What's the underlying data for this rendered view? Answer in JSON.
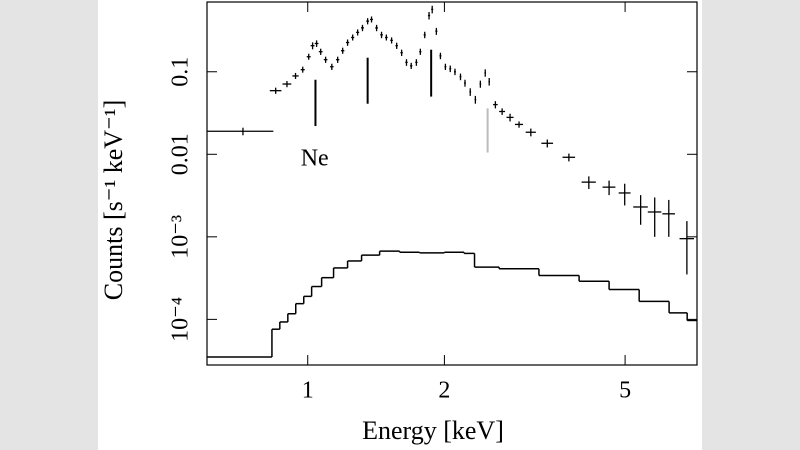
{
  "chart_data": {
    "type": "scatter",
    "xlabel": "Energy [keV]",
    "ylabel": "Counts [s⁻¹ keV⁻¹]",
    "xlog": true,
    "ylog": true,
    "xlim": [
      0.6,
      7.2
    ],
    "ylim": [
      2.8e-05,
      0.7
    ],
    "xticks": [
      1,
      2,
      5
    ],
    "yticks": [
      0.1,
      0.01,
      {
        "value": 0.001,
        "label": "10⁻³"
      },
      {
        "value": 0.0001,
        "label": "10⁻⁴"
      }
    ],
    "points": {
      "color": "#000000",
      "x": [
        0.72,
        0.85,
        0.9,
        0.94,
        0.975,
        1.005,
        1.025,
        1.046,
        1.068,
        1.095,
        1.13,
        1.164,
        1.194,
        1.224,
        1.256,
        1.288,
        1.32,
        1.355,
        1.382,
        1.418,
        1.454,
        1.49,
        1.53,
        1.57,
        1.61,
        1.65,
        1.69,
        1.735,
        1.77,
        1.81,
        1.85,
        1.88,
        1.92,
        1.96,
        2.01,
        2.06,
        2.11,
        2.17,
        2.22,
        2.28,
        2.34,
        2.4,
        2.46,
        2.51,
        2.59,
        2.68,
        2.79,
        2.92,
        3.1,
        3.37,
        3.76,
        4.16,
        4.61,
        4.99,
        5.41,
        5.81,
        6.24,
        6.84
      ],
      "xerr": [
        0.12,
        0.025,
        0.02,
        0.015,
        0.01,
        0.01,
        0.01,
        0.01,
        0.01,
        0.01,
        0.01,
        0.01,
        0.01,
        0.01,
        0.01,
        0.01,
        0.01,
        0.01,
        0.01,
        0.01,
        0.01,
        0.01,
        0.01,
        0.01,
        0.01,
        0.01,
        0.01,
        0.01,
        0.01,
        0.01,
        0.01,
        0.01,
        0.01,
        0.01,
        0.01,
        0.01,
        0.01,
        0.01,
        0.01,
        0.01,
        0.01,
        0.01,
        0.01,
        0.01,
        0.03,
        0.04,
        0.05,
        0.06,
        0.08,
        0.1,
        0.12,
        0.15,
        0.15,
        0.15,
        0.2,
        0.2,
        0.2,
        0.25
      ],
      "y": [
        0.019,
        0.059,
        0.071,
        0.089,
        0.106,
        0.152,
        0.207,
        0.22,
        0.175,
        0.14,
        0.115,
        0.14,
        0.18,
        0.226,
        0.26,
        0.3,
        0.34,
        0.41,
        0.43,
        0.34,
        0.28,
        0.26,
        0.24,
        0.207,
        0.17,
        0.13,
        0.118,
        0.13,
        0.175,
        0.28,
        0.48,
        0.57,
        0.31,
        0.156,
        0.115,
        0.109,
        0.1,
        0.087,
        0.073,
        0.057,
        0.046,
        0.071,
        0.097,
        0.076,
        0.04,
        0.033,
        0.028,
        0.023,
        0.0185,
        0.0136,
        0.0092,
        0.0046,
        0.004,
        0.0034,
        0.0023,
        0.002,
        0.0019,
        0.00095
      ],
      "yerr": [
        0.002,
        0.005,
        0.006,
        0.007,
        0.008,
        0.012,
        0.02,
        0.02,
        0.015,
        0.012,
        0.01,
        0.012,
        0.015,
        0.02,
        0.02,
        0.025,
        0.03,
        0.035,
        0.035,
        0.03,
        0.025,
        0.02,
        0.02,
        0.018,
        0.015,
        0.012,
        0.01,
        0.012,
        0.015,
        0.025,
        0.05,
        0.06,
        0.03,
        0.014,
        0.01,
        0.01,
        0.009,
        0.008,
        0.007,
        0.006,
        0.005,
        0.007,
        0.01,
        0.008,
        0.004,
        0.003,
        0.003,
        0.002,
        0.002,
        0.0015,
        0.001,
        0.0008,
        0.0008,
        0.001,
        0.0009,
        0.001,
        0.0009,
        0.0006
      ]
    },
    "model": {
      "color": "#000000",
      "x": [
        0.6,
        0.834,
        0.868,
        0.904,
        0.941,
        0.98,
        1.02,
        1.073,
        1.14,
        1.224,
        1.314,
        1.44,
        1.594,
        1.763,
        2.0,
        2.21,
        2.33,
        2.64,
        3.23,
        3.96,
        4.61,
        5.37,
        6.25,
        6.85,
        7.2
      ],
      "y": [
        3.5e-05,
        7.6e-05,
        9.3e-05,
        0.000117,
        0.000155,
        0.00019,
        0.00025,
        0.00032,
        0.00042,
        0.00051,
        0.0006,
        0.00067,
        0.00065,
        0.00064,
        0.00065,
        0.00063,
        0.00043,
        0.00041,
        0.00034,
        0.00029,
        0.00023,
        0.000165,
        0.00012,
        9.7e-05,
        9.7e-05
      ]
    },
    "line_markers": [
      {
        "x": 1.04,
        "y": [
          0.08,
          0.022
        ],
        "color": "#000000"
      },
      {
        "x": 1.355,
        "y": [
          0.148,
          0.041
        ],
        "color": "#000000"
      },
      {
        "x": 1.87,
        "y": [
          0.185,
          0.05
        ],
        "color": "#000000"
      },
      {
        "x": 2.49,
        "y": [
          0.036,
          0.0105
        ],
        "color": "#bbbbbb"
      }
    ],
    "annotations": [
      {
        "text": "Ne",
        "x": 1.036,
        "y": 0.0085
      }
    ]
  }
}
